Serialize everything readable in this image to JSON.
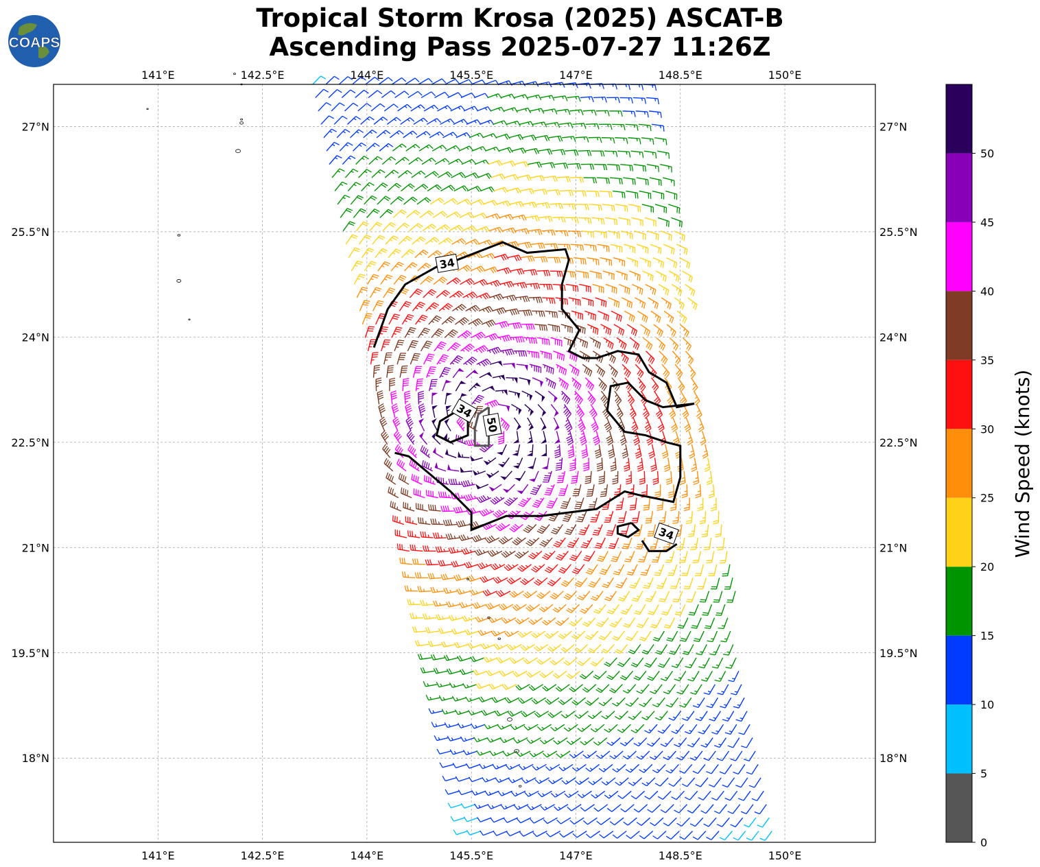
{
  "title": {
    "line1": "Tropical Storm Krosa (2025) ASCAT-B",
    "line2": "Ascending Pass 2025-07-27 11:26Z"
  },
  "logo": {
    "text": "COAPS",
    "ocean_color": "#1f5fae",
    "land_color": "#6a8f3a"
  },
  "map": {
    "lon_range": [
      139.5,
      151.3
    ],
    "lat_range": [
      16.8,
      27.6
    ],
    "lon_ticks": [
      "141°E",
      "142.5°E",
      "144°E",
      "145.5°E",
      "147°E",
      "148.5°E",
      "150°E"
    ],
    "lat_ticks": [
      "18°N",
      "19.5°N",
      "21°N",
      "22.5°N",
      "24°N",
      "25.5°N",
      "27°N"
    ],
    "grid": true,
    "storm_center": {
      "lon": 145.7,
      "lat": 22.75
    }
  },
  "contours": [
    {
      "level": "34",
      "label_position": "north-west"
    },
    {
      "level": "34",
      "label_position": "inner ring"
    },
    {
      "level": "50",
      "label_position": "near center"
    },
    {
      "level": "34",
      "label_position": "south-east"
    }
  ],
  "colorbar": {
    "label": "Wind Speed (knots)",
    "ticks": [
      "0",
      "5",
      "10",
      "15",
      "20",
      "25",
      "30",
      "35",
      "40",
      "45",
      "50"
    ],
    "bins": [
      {
        "from": 0,
        "to": 5,
        "color": "#555555"
      },
      {
        "from": 5,
        "to": 10,
        "color": "#00bfff"
      },
      {
        "from": 10,
        "to": 15,
        "color": "#003bff"
      },
      {
        "from": 15,
        "to": 20,
        "color": "#009500"
      },
      {
        "from": 20,
        "to": 25,
        "color": "#ffd21a"
      },
      {
        "from": 25,
        "to": 30,
        "color": "#ff8f0a"
      },
      {
        "from": 30,
        "to": 35,
        "color": "#ff1010"
      },
      {
        "from": 35,
        "to": 40,
        "color": "#7f3b24"
      },
      {
        "from": 40,
        "to": 45,
        "color": "#ff00ff"
      },
      {
        "from": 45,
        "to": 50,
        "color": "#8800b8"
      },
      {
        "from": 50,
        "to": 55,
        "color": "#2a005c"
      }
    ]
  }
}
